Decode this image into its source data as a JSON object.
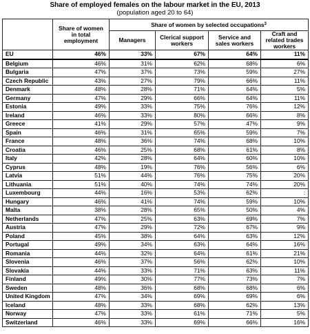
{
  "title": "Share of employed females on the labour market in the EU, 2013",
  "subtitle": "(population aged 20 to 64)",
  "headers": {
    "share_total": "Share of women in total employment",
    "group": "Share of women by selected occupations",
    "group_note": "3",
    "managers": "Managers",
    "clerical": "Clerical support workers",
    "service": "Service and sales workers",
    "craft": "Craft and related trades workers"
  },
  "rows": [
    {
      "country": "EU",
      "total": "46%",
      "managers": "33%",
      "clerical": "67%",
      "service": "64%",
      "craft": "11%"
    },
    {
      "country": "Belgium",
      "total": "46%",
      "managers": "31%",
      "clerical": "62%",
      "service": "68%",
      "craft": "6%"
    },
    {
      "country": "Bulgaria",
      "total": "47%",
      "managers": "37%",
      "clerical": "73%",
      "service": "59%",
      "craft": "27%"
    },
    {
      "country": "Czech Republic",
      "total": "43%",
      "managers": "27%",
      "clerical": "79%",
      "service": "66%",
      "craft": "11%"
    },
    {
      "country": "Denmark",
      "total": "48%",
      "managers": "28%",
      "clerical": "71%",
      "service": "64%",
      "craft": "5%"
    },
    {
      "country": "Germany",
      "total": "47%",
      "managers": "29%",
      "clerical": "66%",
      "service": "64%",
      "craft": "11%"
    },
    {
      "country": "Estonia",
      "total": "49%",
      "managers": "33%",
      "clerical": "75%",
      "service": "76%",
      "craft": "12%"
    },
    {
      "country": "Ireland",
      "total": "46%",
      "managers": "33%",
      "clerical": "80%",
      "service": "66%",
      "craft": "8%"
    },
    {
      "country": "Greece",
      "total": "41%",
      "managers": "29%",
      "clerical": "57%",
      "service": "47%",
      "craft": "9%"
    },
    {
      "country": "Spain",
      "total": "46%",
      "managers": "31%",
      "clerical": "65%",
      "service": "59%",
      "craft": "7%"
    },
    {
      "country": "France",
      "total": "48%",
      "managers": "36%",
      "clerical": "74%",
      "service": "68%",
      "craft": "10%"
    },
    {
      "country": "Croatia",
      "total": "46%",
      "managers": "25%",
      "clerical": "68%",
      "service": "61%",
      "craft": "8%"
    },
    {
      "country": "Italy",
      "total": "42%",
      "managers": "28%",
      "clerical": "64%",
      "service": "60%",
      "craft": "10%"
    },
    {
      "country": "Cyprus",
      "total": "48%",
      "managers": "19%",
      "clerical": "76%",
      "service": "56%",
      "craft": "6%"
    },
    {
      "country": "Latvia",
      "total": "51%",
      "managers": "44%",
      "clerical": "76%",
      "service": "75%",
      "craft": "20%"
    },
    {
      "country": "Lithuania",
      "total": "51%",
      "managers": "40%",
      "clerical": "74%",
      "service": "74%",
      "craft": "20%"
    },
    {
      "country": "Luxembourg",
      "total": "44%",
      "managers": "16%",
      "clerical": "53%",
      "service": "62%",
      "craft": ":"
    },
    {
      "country": "Hungary",
      "total": "46%",
      "managers": "41%",
      "clerical": "74%",
      "service": "59%",
      "craft": "10%"
    },
    {
      "country": "Malta",
      "total": "38%",
      "managers": "28%",
      "clerical": "65%",
      "service": "50%",
      "craft": "4%"
    },
    {
      "country": "Netherlands",
      "total": "47%",
      "managers": "25%",
      "clerical": "63%",
      "service": "69%",
      "craft": "7%"
    },
    {
      "country": "Austria",
      "total": "47%",
      "managers": "29%",
      "clerical": "72%",
      "service": "67%",
      "craft": "9%"
    },
    {
      "country": "Poland",
      "total": "45%",
      "managers": "38%",
      "clerical": "64%",
      "service": "63%",
      "craft": "12%"
    },
    {
      "country": "Portugal",
      "total": "49%",
      "managers": "34%",
      "clerical": "63%",
      "service": "64%",
      "craft": "16%"
    },
    {
      "country": "Romania",
      "total": "44%",
      "managers": "32%",
      "clerical": "64%",
      "service": "61%",
      "craft": "21%"
    },
    {
      "country": "Slovenia",
      "total": "46%",
      "managers": "37%",
      "clerical": "56%",
      "service": "62%",
      "craft": "10%"
    },
    {
      "country": "Slovakia",
      "total": "44%",
      "managers": "33%",
      "clerical": "71%",
      "service": "63%",
      "craft": "11%"
    },
    {
      "country": "Finland",
      "total": "49%",
      "managers": "30%",
      "clerical": "77%",
      "service": "73%",
      "craft": "7%"
    },
    {
      "country": "Sweden",
      "total": "48%",
      "managers": "36%",
      "clerical": "68%",
      "service": "68%",
      "craft": "6%"
    },
    {
      "country": "United Kingdom",
      "total": "47%",
      "managers": "34%",
      "clerical": "69%",
      "service": "69%",
      "craft": "6%"
    },
    {
      "country": "Iceland",
      "total": "48%",
      "managers": "33%",
      "clerical": "68%",
      "service": "62%",
      "craft": "13%"
    },
    {
      "country": "Norway",
      "total": "47%",
      "managers": "33%",
      "clerical": "61%",
      "service": "71%",
      "craft": "5%"
    },
    {
      "country": "Switzerland",
      "total": "46%",
      "managers": "33%",
      "clerical": "69%",
      "service": "66%",
      "craft": "16%"
    }
  ]
}
